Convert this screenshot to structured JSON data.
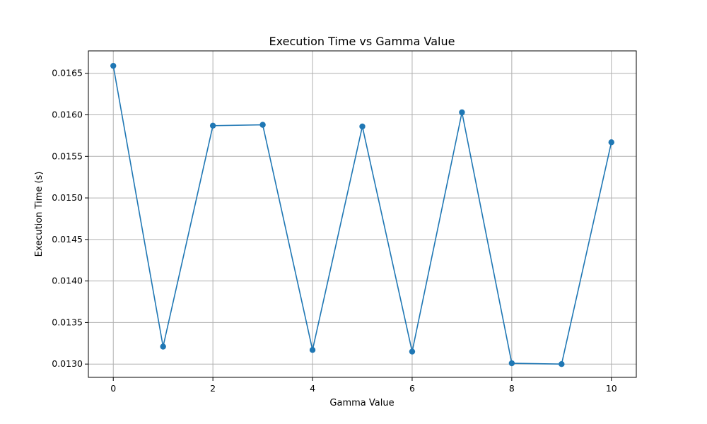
{
  "chart_data": {
    "type": "line",
    "title": "Execution Time vs Gamma Value",
    "xlabel": "Gamma Value",
    "ylabel": "Execution Time (s)",
    "x": [
      0,
      1,
      2,
      3,
      4,
      5,
      6,
      7,
      8,
      9,
      10
    ],
    "series": [
      {
        "values": [
          0.01659,
          0.01321,
          0.01587,
          0.01588,
          0.01317,
          0.01586,
          0.01315,
          0.01603,
          0.01301,
          0.013,
          0.01567
        ],
        "color": "#1f77b4",
        "marker": "circle"
      }
    ],
    "xlim": [
      -0.5,
      10.5
    ],
    "ylim": [
      0.01284,
      0.01677
    ],
    "xticks": [
      0,
      2,
      4,
      6,
      8,
      10
    ],
    "xtick_labels": [
      "0",
      "2",
      "4",
      "6",
      "8",
      "10"
    ],
    "yticks": [
      0.013,
      0.0135,
      0.014,
      0.0145,
      0.015,
      0.0155,
      0.016,
      0.0165
    ],
    "ytick_labels": [
      "0.0130",
      "0.0135",
      "0.0140",
      "0.0145",
      "0.0150",
      "0.0155",
      "0.0160",
      "0.0165"
    ],
    "grid": true,
    "grid_color": "#b0b0b0"
  }
}
